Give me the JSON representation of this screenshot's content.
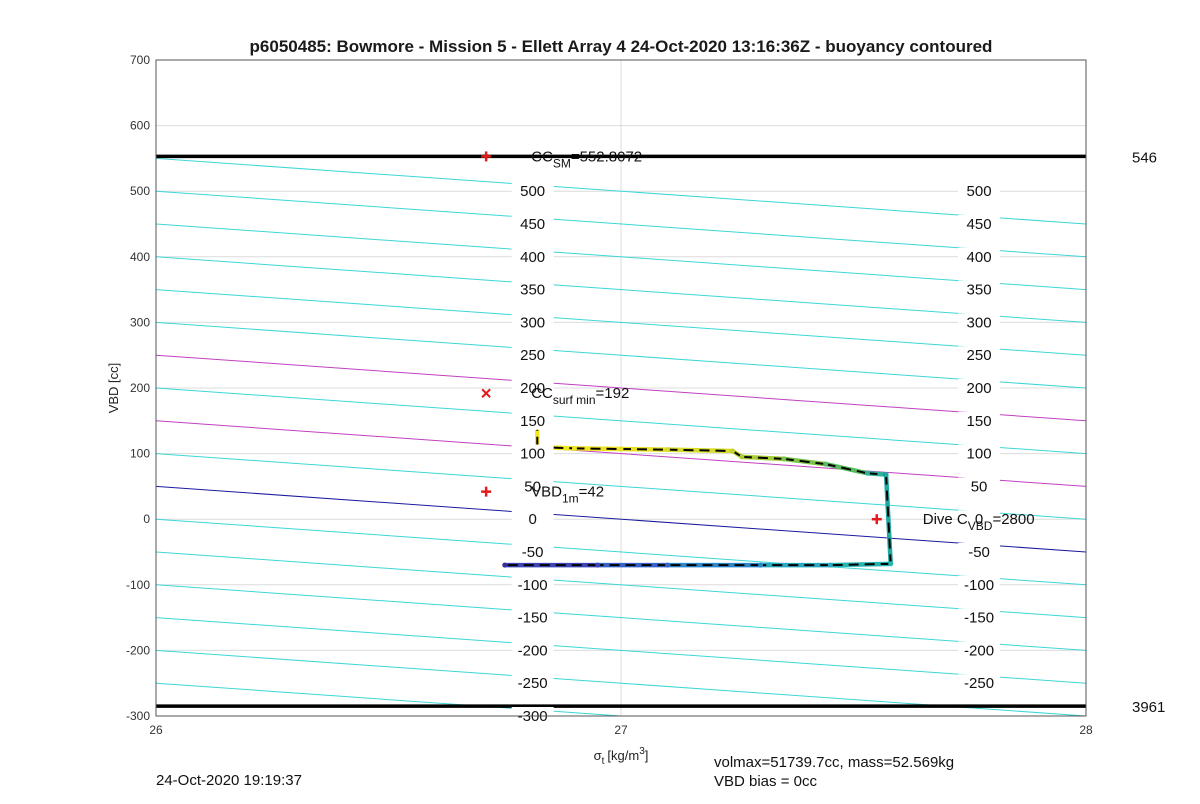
{
  "chart_data": {
    "type": "line",
    "title": "p6050485: Bowmore - Mission 5 - Ellett Array 4 24-Oct-2020 13:16:36Z - buoyancy contoured",
    "xlabel": "σ",
    "xlabel_sub": "t",
    "xlabel_units": "[kg/m",
    "xlabel_units_sup": "3",
    "xlabel_units_end": "]",
    "ylabel": "VBD [cc]",
    "xlim": [
      26,
      28
    ],
    "ylim": [
      -300,
      700
    ],
    "x_ticks": [
      "26",
      "27",
      "28"
    ],
    "y_ticks": [
      "-300",
      "-200",
      "-100",
      "0",
      "100",
      "200",
      "300",
      "400",
      "500",
      "600",
      "700"
    ],
    "grid": true,
    "hlines": [
      {
        "y": 553,
        "color": "#000000",
        "right_label": "546"
      },
      {
        "y": -285,
        "color": "#000000",
        "right_label": "3961"
      }
    ],
    "buoyancy_contours": {
      "left_label_x": 26.81,
      "right_label_x": 27.77,
      "slope_per_unit_x": -50,
      "left": [
        {
          "value": 500,
          "label": "500"
        },
        {
          "value": 450,
          "label": "450"
        },
        {
          "value": 400,
          "label": "400"
        },
        {
          "value": 350,
          "label": "350"
        },
        {
          "value": 300,
          "label": "300"
        },
        {
          "value": 250,
          "label": "250"
        },
        {
          "value": 200,
          "label": "200"
        },
        {
          "value": 150,
          "label": "150"
        },
        {
          "value": 100,
          "label": "100"
        },
        {
          "value": 50,
          "label": "50"
        },
        {
          "value": 0,
          "label": "0"
        },
        {
          "value": -50,
          "label": "-50"
        },
        {
          "value": -100,
          "label": "-100"
        },
        {
          "value": -150,
          "label": "-150"
        },
        {
          "value": -200,
          "label": "-200"
        },
        {
          "value": -250,
          "label": "-250"
        },
        {
          "value": -300,
          "label": "-300"
        }
      ],
      "right": [
        {
          "value": 500,
          "label": "500"
        },
        {
          "value": 450,
          "label": "450"
        },
        {
          "value": 400,
          "label": "400"
        },
        {
          "value": 350,
          "label": "350"
        },
        {
          "value": 300,
          "label": "300"
        },
        {
          "value": 250,
          "label": "250"
        },
        {
          "value": 200,
          "label": "200"
        },
        {
          "value": 150,
          "label": "150"
        },
        {
          "value": 100,
          "label": "100"
        },
        {
          "value": 50,
          "label": "50"
        },
        {
          "value": 0,
          "label": "0"
        },
        {
          "value": -50,
          "label": "-50"
        },
        {
          "value": -100,
          "label": "-100"
        },
        {
          "value": -150,
          "label": "-150"
        },
        {
          "value": -200,
          "label": "-200"
        },
        {
          "value": -250,
          "label": "-250"
        }
      ],
      "lines": [
        {
          "y_at_26": 550,
          "color": "#3ed6d6"
        },
        {
          "y_at_26": 500,
          "color": "#3ed6d6"
        },
        {
          "y_at_26": 450,
          "color": "#3ed6d6"
        },
        {
          "y_at_26": 400,
          "color": "#3ed6d6"
        },
        {
          "y_at_26": 350,
          "color": "#3ed6d6"
        },
        {
          "y_at_26": 300,
          "color": "#3ed6d6"
        },
        {
          "y_at_26": 250,
          "color": "#c040c0"
        },
        {
          "y_at_26": 200,
          "color": "#3ed6d6"
        },
        {
          "y_at_26": 150,
          "color": "#c040c0"
        },
        {
          "y_at_26": 100,
          "color": "#3ed6d6"
        },
        {
          "y_at_26": 50,
          "color": "#1a1aa0"
        },
        {
          "y_at_26": 0,
          "color": "#3ed6d6"
        },
        {
          "y_at_26": -50,
          "color": "#3ed6d6"
        },
        {
          "y_at_26": -100,
          "color": "#3ed6d6"
        },
        {
          "y_at_26": -150,
          "color": "#3ed6d6"
        },
        {
          "y_at_26": -200,
          "color": "#3ed6d6"
        },
        {
          "y_at_26": -250,
          "color": "#3ed6d6"
        },
        {
          "y_at_26": -300,
          "color": "#3ed6d6"
        }
      ]
    },
    "markers": [
      {
        "x": 26.71,
        "y": 553,
        "symbol": "+",
        "color": "#e41a1c",
        "label": "CC",
        "label_sub": "SM",
        "label_rest": "=552.8072"
      },
      {
        "x": 26.71,
        "y": 192,
        "symbol": "x",
        "color": "#e41a1c",
        "label": "CC",
        "label_sub": "surf min",
        "label_rest": "=192"
      },
      {
        "x": 26.71,
        "y": 42,
        "symbol": "+",
        "color": "#e41a1c",
        "label": "VBD",
        "label_sub": "1m",
        "label_rest": "=42"
      },
      {
        "x": 27.55,
        "y": 0,
        "symbol": "+",
        "color": "#e41a1c",
        "label": "Dive C",
        "label_sub": "VBD",
        "label_rest": "=2800"
      }
    ],
    "series": [
      {
        "kind": "profile",
        "points": [
          {
            "x": 26.82,
            "y": 150,
            "c": "#f2e61e"
          },
          {
            "x": 26.82,
            "y": 110,
            "c": "#f2e61e"
          },
          {
            "x": 26.9,
            "y": 108,
            "c": "#f0e420"
          },
          {
            "x": 27.0,
            "y": 107,
            "c": "#e8e020"
          },
          {
            "x": 27.1,
            "y": 106,
            "c": "#d6dc28"
          },
          {
            "x": 27.24,
            "y": 104,
            "c": "#c0d430"
          },
          {
            "x": 27.26,
            "y": 95,
            "c": "#a8cc38"
          },
          {
            "x": 27.35,
            "y": 92,
            "c": "#7cc448"
          },
          {
            "x": 27.44,
            "y": 84,
            "c": "#56bc5e"
          },
          {
            "x": 27.53,
            "y": 70,
            "c": "#2eb29c"
          },
          {
            "x": 27.57,
            "y": 68,
            "c": "#20a8a0"
          },
          {
            "x": 27.58,
            "y": -68,
            "c": "#26b6b2"
          },
          {
            "x": 27.45,
            "y": -70,
            "c": "#2aa8c0"
          },
          {
            "x": 27.3,
            "y": -70,
            "c": "#2c88cc"
          },
          {
            "x": 27.1,
            "y": -70,
            "c": "#3864c8"
          },
          {
            "x": 26.95,
            "y": -70,
            "c": "#3c46b8"
          },
          {
            "x": 26.75,
            "y": -70,
            "c": "#3a2e9c"
          }
        ]
      }
    ]
  },
  "footer": {
    "timestamp": "24-Oct-2020 19:19:37",
    "volmax": "volmax=51739.7cc, mass=52.569kg",
    "bias": "VBD bias = 0cc"
  }
}
